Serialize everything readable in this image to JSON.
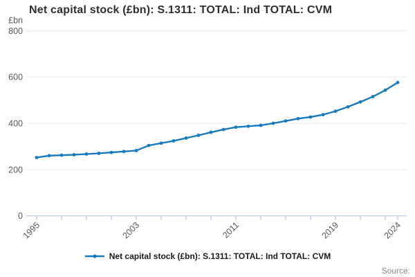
{
  "page": {
    "source_label": "Source:"
  },
  "chart_data": {
    "type": "line",
    "title": "Net capital stock (£bn): S.1311: TOTAL: Ind TOTAL: CVM",
    "ylabel": "£bn",
    "xlabel": "",
    "legend_position": "bottom-center",
    "grid": true,
    "ylim": [
      0,
      800
    ],
    "yticks": [
      0,
      200,
      400,
      600,
      800
    ],
    "xlim": [
      1995,
      2024
    ],
    "xticks": [
      1995,
      1997,
      1999,
      2001,
      2003,
      2005,
      2007,
      2009,
      2011,
      2013,
      2015,
      2017,
      2019,
      2021,
      2023,
      2024
    ],
    "xtick_labels": [
      1995,
      2003,
      2011,
      2019,
      2024
    ],
    "x": [
      1995,
      1996,
      1997,
      1998,
      1999,
      2000,
      2001,
      2002,
      2003,
      2004,
      2005,
      2006,
      2007,
      2008,
      2009,
      2010,
      2011,
      2012,
      2013,
      2014,
      2015,
      2016,
      2017,
      2018,
      2019,
      2020,
      2021,
      2022,
      2023,
      2024
    ],
    "series": [
      {
        "name": "Net capital stock (£bn): S.1311: TOTAL: Ind TOTAL: CVM",
        "values": [
          252,
          260,
          262,
          264,
          267,
          270,
          274,
          278,
          282,
          304,
          314,
          324,
          336,
          348,
          361,
          373,
          383,
          387,
          391,
          400,
          410,
          420,
          427,
          437,
          452,
          471,
          492,
          515,
          543,
          576
        ]
      }
    ],
    "colors": {
      "line": "#1779be",
      "grid": "#e8e8e8",
      "axis": "#aebdde",
      "tick_label": "#595959",
      "unit_label": "#595959"
    }
  }
}
